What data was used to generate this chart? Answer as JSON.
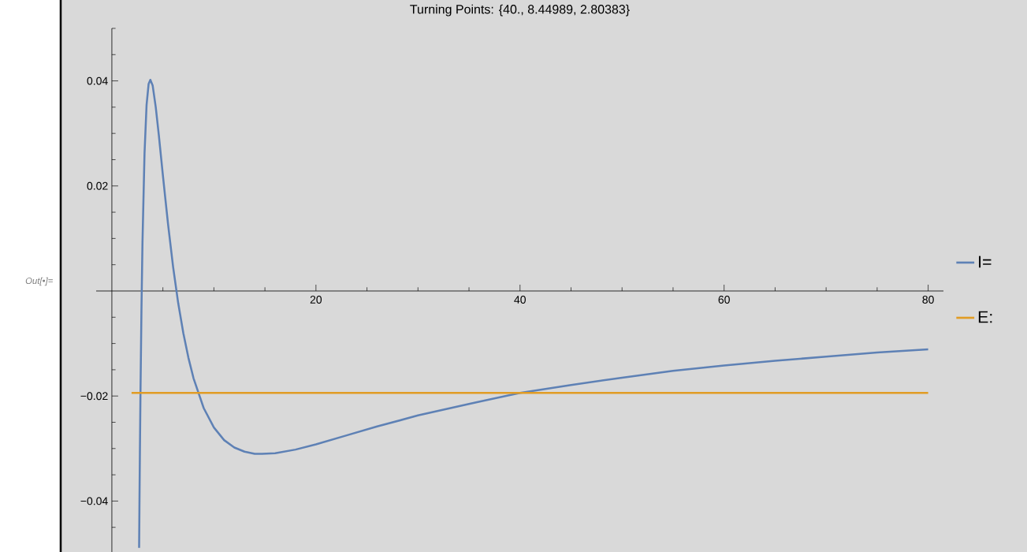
{
  "chart_data": {
    "type": "line",
    "title": "Turning Points: {40., 8.44989, 2.80383}",
    "annotations": [
      "Out[•]="
    ],
    "xlim": [
      -1.54,
      81.5
    ],
    "ylim": [
      -0.0497,
      0.05
    ],
    "xticks": [
      20,
      40,
      60,
      80
    ],
    "yticks": [
      {
        "value": -0.04,
        "label": "−0.04"
      },
      {
        "value": -0.02,
        "label": "−0.02"
      },
      {
        "value": 0.02,
        "label": "0.02"
      },
      {
        "value": 0.04,
        "label": "0.04"
      }
    ],
    "legend": "right",
    "grid": false,
    "marker": "none",
    "series": [
      {
        "name": "I=",
        "color": "#5e81b5",
        "x": [
          2.67,
          2.7,
          2.75,
          2.8,
          2.9,
          3.0,
          3.2,
          3.4,
          3.6,
          3.77,
          4.0,
          4.3,
          4.6,
          5,
          5.5,
          6,
          6.5,
          7,
          7.5,
          8,
          9,
          10,
          11,
          12,
          13,
          14,
          14.73,
          16,
          18,
          20,
          23,
          26,
          30,
          35,
          40,
          45,
          50,
          55,
          60,
          65,
          70,
          75,
          80
        ],
        "values": [
          -0.0489,
          -0.0414,
          -0.03,
          -0.02,
          -0.0035,
          0.0093,
          0.0262,
          0.0354,
          0.0394,
          0.0402,
          0.0391,
          0.035,
          0.0297,
          0.022,
          0.0128,
          0.0046,
          -0.0023,
          -0.008,
          -0.0127,
          -0.0166,
          -0.0223,
          -0.026,
          -0.0284,
          -0.0298,
          -0.0306,
          -0.031,
          -0.031,
          -0.0309,
          -0.0302,
          -0.0292,
          -0.0275,
          -0.0258,
          -0.0237,
          -0.0215,
          -0.0194,
          -0.0179,
          -0.0165,
          -0.0152,
          -0.0142,
          -0.0133,
          -0.0125,
          -0.0117,
          -0.0111
        ]
      },
      {
        "name": "E:",
        "color": "#e19c24",
        "x": [
          1.93,
          80
        ],
        "values": [
          -0.0194,
          -0.0194
        ]
      }
    ]
  }
}
